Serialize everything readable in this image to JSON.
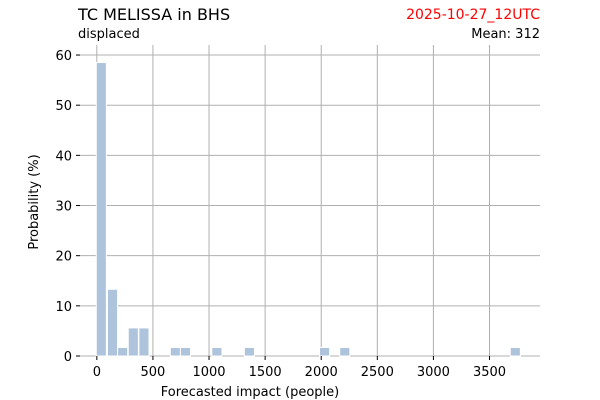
{
  "header": {
    "title": "TC MELISSA in BHS",
    "timestamp": "2025-10-27_12UTC",
    "subtitle": "displaced",
    "mean_label": "Mean: 312"
  },
  "colors": {
    "bar": "#aec3dc",
    "grid": "#b0b0b0",
    "timestamp": "#ff0000"
  },
  "chart_data": {
    "type": "bar",
    "title": "TC MELISSA in BHS",
    "subtitle": "displaced",
    "xlabel": "Forecasted impact (people)",
    "ylabel": "Probability (%)",
    "xlim": [
      -150,
      3950
    ],
    "ylim": [
      0,
      62
    ],
    "xticks": [
      0,
      500,
      1000,
      1500,
      2000,
      2500,
      3000,
      3500
    ],
    "yticks": [
      0,
      10,
      20,
      30,
      40,
      50,
      60
    ],
    "grid": true,
    "bin_width": 90,
    "bins": [
      {
        "x": 40,
        "value": 58.5
      },
      {
        "x": 140,
        "value": 13.3
      },
      {
        "x": 230,
        "value": 1.7
      },
      {
        "x": 325,
        "value": 5.6
      },
      {
        "x": 420,
        "value": 5.6
      },
      {
        "x": 700,
        "value": 1.7
      },
      {
        "x": 790,
        "value": 1.7
      },
      {
        "x": 1070,
        "value": 1.7
      },
      {
        "x": 1360,
        "value": 1.7
      },
      {
        "x": 2030,
        "value": 1.7
      },
      {
        "x": 2210,
        "value": 1.7
      },
      {
        "x": 3730,
        "value": 1.7
      }
    ]
  }
}
